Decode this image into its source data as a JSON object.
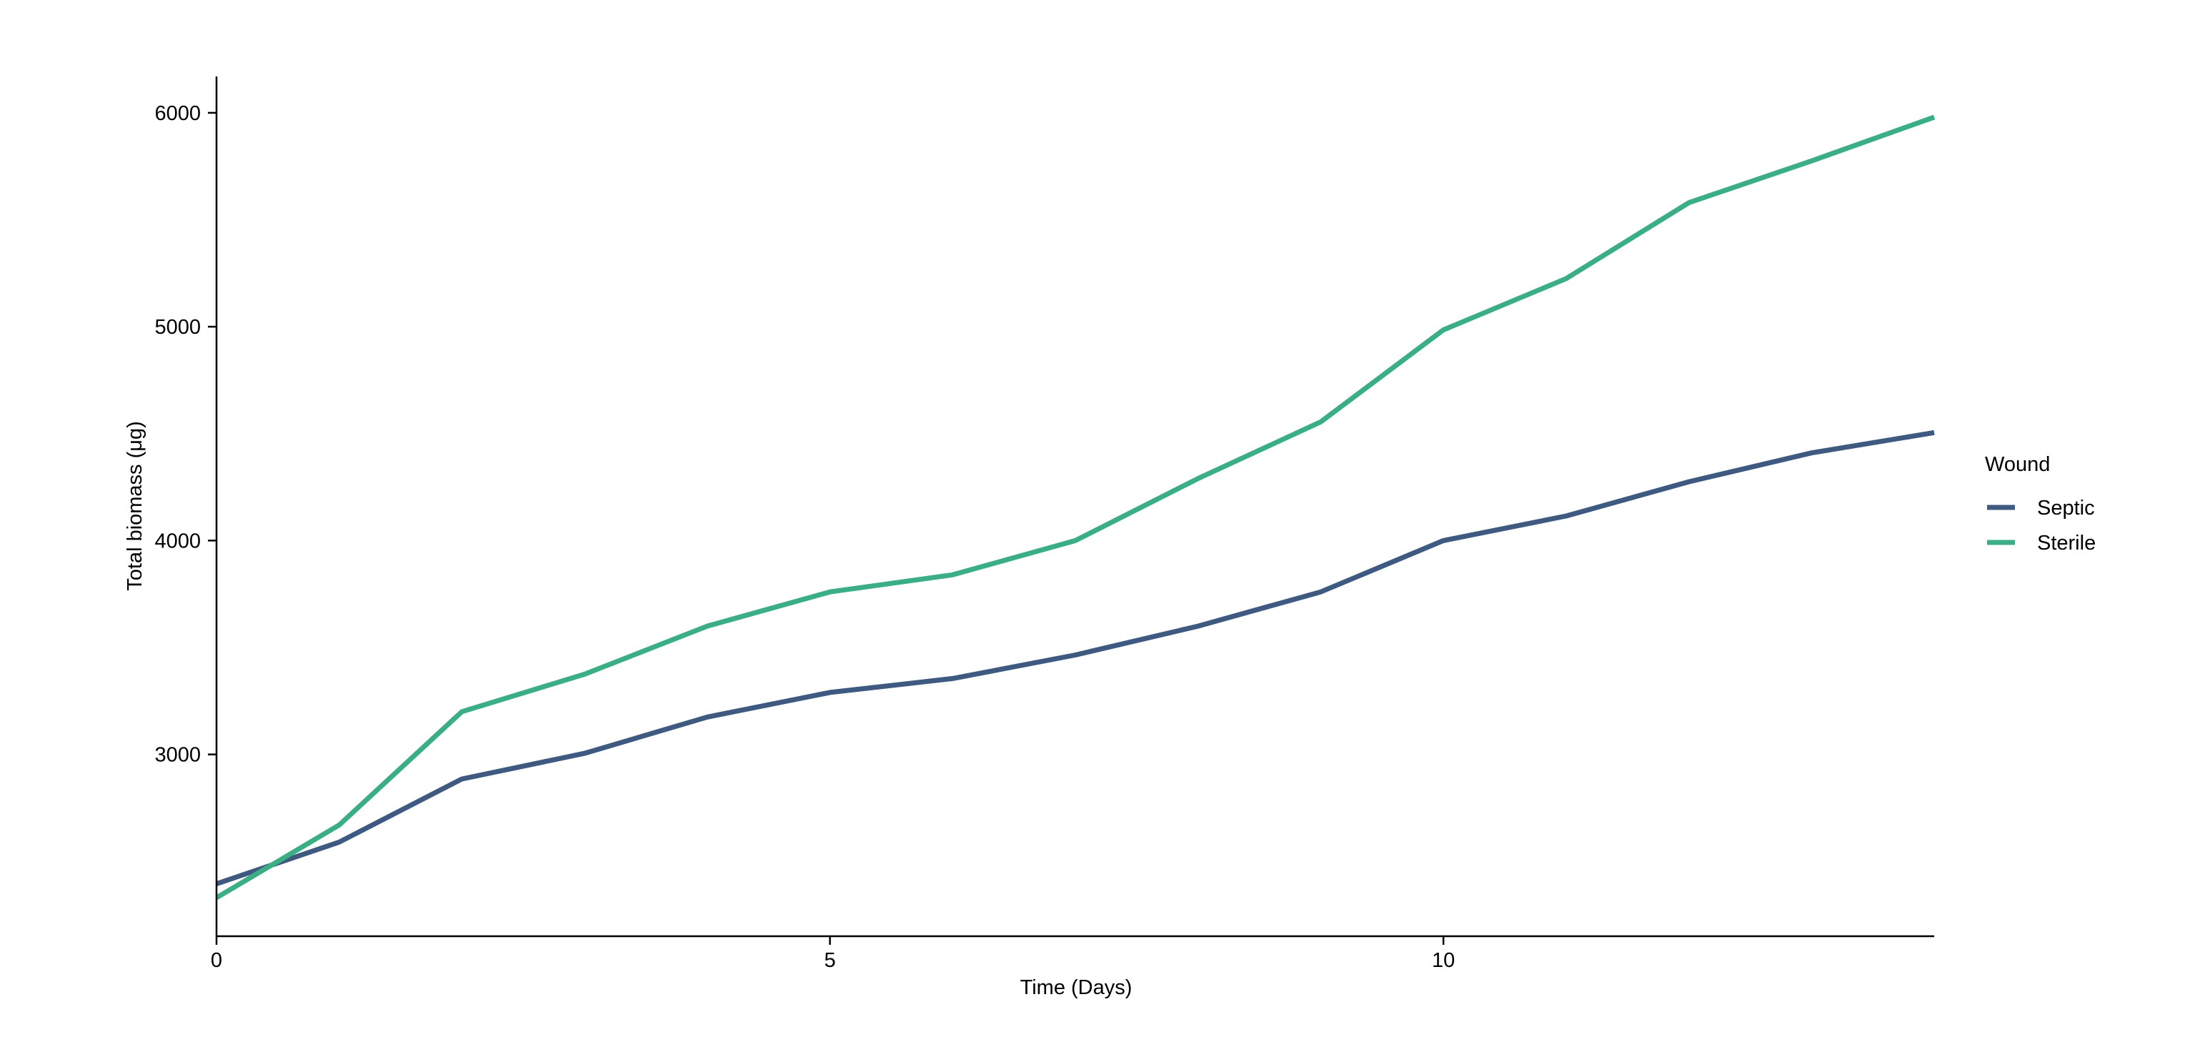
{
  "chart_data": {
    "type": "line",
    "xlabel": "Time (Days)",
    "ylabel": "Total biomass (μg)",
    "xlim": [
      0,
      14
    ],
    "ylim": [
      2150,
      6170
    ],
    "x_ticks": [
      0,
      5,
      10
    ],
    "y_ticks": [
      3000,
      4000,
      5000,
      6000
    ],
    "grid": false,
    "legend": {
      "title": "Wound",
      "placement": "right"
    },
    "x": [
      0,
      1,
      2,
      3,
      4,
      5,
      6,
      7,
      8,
      9,
      10,
      11,
      12,
      13,
      14
    ],
    "series": [
      {
        "name": "Septic",
        "color": "#3f5a80",
        "values": [
          2395,
          2590,
          2885,
          3005,
          3175,
          3290,
          3355,
          3465,
          3600,
          3760,
          4000,
          4115,
          4275,
          4410,
          4505
        ]
      },
      {
        "name": "Sterile",
        "color": "#3bae85",
        "values": [
          2330,
          2670,
          3200,
          3375,
          3600,
          3760,
          3840,
          4000,
          4290,
          4555,
          4985,
          5225,
          5580,
          5775,
          5980
        ]
      }
    ]
  }
}
